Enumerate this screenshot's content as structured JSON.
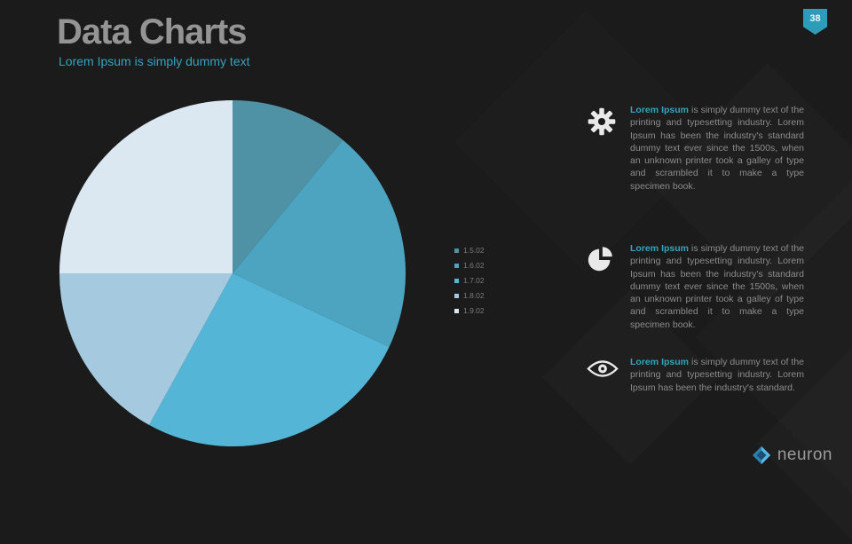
{
  "slide": {
    "title": "Data Charts",
    "subtitle": "Lorem Ipsum is simply dummy text",
    "page_number": "38"
  },
  "chart_data": {
    "type": "pie",
    "title": "",
    "legend_position": "right",
    "slices": [
      {
        "label": "1.5.02",
        "value": 11,
        "color": "#4f92a6"
      },
      {
        "label": "1.6.02",
        "value": 21,
        "color": "#4da4c0"
      },
      {
        "label": "1.7.02",
        "value": 26,
        "color": "#55b5d6"
      },
      {
        "label": "1.8.02",
        "value": 17,
        "color": "#a5c9de"
      },
      {
        "label": "1.9.02",
        "value": 25,
        "color": "#dbe8f2"
      }
    ]
  },
  "info_blocks": [
    {
      "icon": "gear-icon",
      "lead": "Lorem Ipsum",
      "text": "is simply dummy text of the printing and typesetting industry. Lorem Ipsum has been the industry's standard dummy text ever since the 1500s, when an unknown printer took a galley of type and scrambled it to make a type specimen book."
    },
    {
      "icon": "pie-chart-icon",
      "lead": "Lorem Ipsum",
      "text": "is simply dummy text of the printing and typesetting industry. Lorem Ipsum has been the industry's standard dummy text ever since the 1500s, when an unknown printer took a galley of type and scrambled it to make a type specimen book."
    },
    {
      "icon": "eye-icon",
      "lead": "Lorem Ipsum",
      "text": "is simply dummy text of the printing and typesetting industry. Lorem Ipsum has been the industry's standard."
    }
  ],
  "logo": {
    "text": "neuron"
  },
  "colors": {
    "accent": "#35a3be",
    "badge": "#2d9cb8",
    "background": "#1b1b1b"
  }
}
